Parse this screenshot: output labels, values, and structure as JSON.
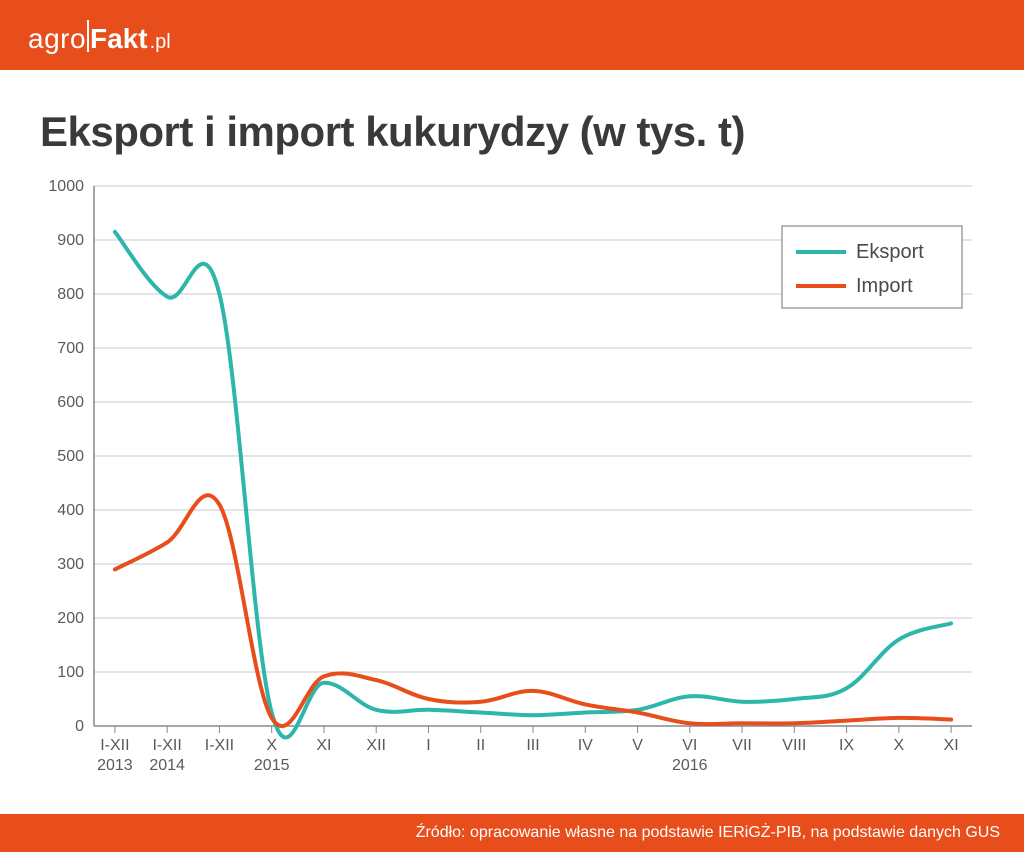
{
  "brand": {
    "light": "agro",
    "bold": "Fakt",
    "suffix": ".pl"
  },
  "title": "Eksport i import kukurydzy (w tys. t)",
  "footer": "Źródło: opracowanie własne na podstawie IERiGŻ-PIB, na podstawie danych GUS",
  "chart": {
    "type": "line",
    "background_color": "#ffffff",
    "grid_color": "#c8c8c8",
    "axis_color": "#888888",
    "title_fontsize": 42,
    "label_fontsize": 16,
    "line_width": 4,
    "ylim": [
      0,
      1000
    ],
    "ytick_step": 100,
    "yticks": [
      0,
      100,
      200,
      300,
      400,
      500,
      600,
      700,
      800,
      900,
      1000
    ],
    "categories": [
      "I-XII\n2013",
      "I-XII\n2014",
      "I-XII",
      "X\n2015",
      "XI",
      "XII",
      "I",
      "II",
      "III",
      "IV",
      "V",
      "VI\n2016",
      "VII",
      "VIII",
      "IX",
      "X",
      "XI"
    ],
    "legend": {
      "position": "top-right",
      "items": [
        {
          "label": "Eksport",
          "color": "#2db6aa"
        },
        {
          "label": "Import",
          "color": "#e84e1b"
        }
      ]
    },
    "series": [
      {
        "name": "Eksport",
        "color": "#2db6aa",
        "values": [
          915,
          795,
          800,
          25,
          80,
          30,
          30,
          25,
          20,
          25,
          30,
          55,
          45,
          50,
          70,
          160,
          190
        ]
      },
      {
        "name": "Import",
        "color": "#e84e1b",
        "values": [
          290,
          340,
          410,
          15,
          92,
          85,
          50,
          45,
          65,
          40,
          25,
          5,
          5,
          5,
          10,
          15,
          12
        ]
      }
    ]
  }
}
